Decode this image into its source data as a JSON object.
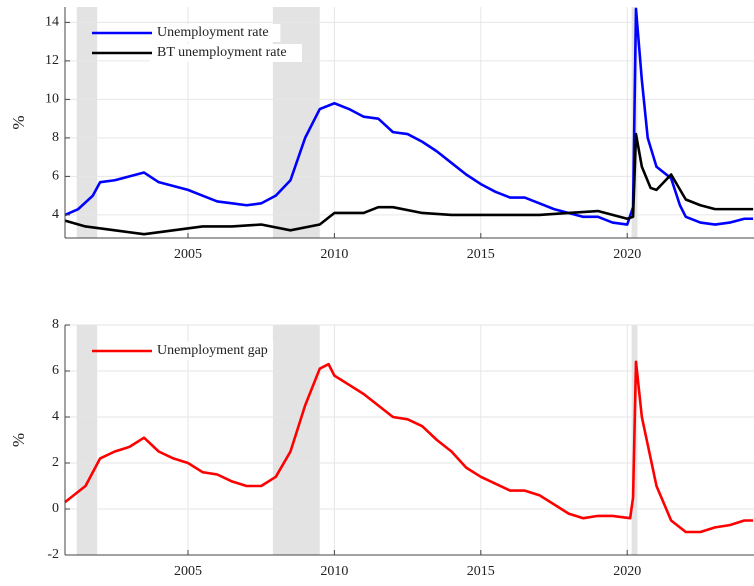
{
  "chart_data": [
    {
      "type": "line",
      "y_label": "%",
      "xlim": [
        2000.8,
        2024.33
      ],
      "ylim": [
        2.8,
        14.8
      ],
      "xticks": [
        2005,
        2010,
        2015,
        2020
      ],
      "yticks": [
        4,
        6,
        8,
        10,
        12,
        14
      ],
      "grid": true,
      "legend": "upper left",
      "recessions": [
        [
          2001.2,
          2001.9
        ],
        [
          2007.9,
          2009.5
        ],
        [
          2020.15,
          2020.35
        ]
      ],
      "series": [
        {
          "name": "Unemployment rate",
          "color": "#0000ff",
          "x": [
            2000.8,
            2001.25,
            2001.75,
            2002,
            2002.5,
            2003,
            2003.5,
            2004,
            2004.5,
            2005,
            2005.5,
            2006,
            2006.5,
            2007,
            2007.5,
            2008,
            2008.5,
            2009,
            2009.5,
            2010,
            2010.5,
            2011,
            2011.5,
            2012,
            2012.5,
            2013,
            2013.5,
            2014,
            2014.5,
            2015,
            2015.5,
            2016,
            2016.5,
            2017,
            2017.5,
            2018,
            2018.5,
            2019,
            2019.5,
            2020,
            2020.2,
            2020.3,
            2020.5,
            2020.7,
            2021,
            2021.5,
            2021.8,
            2022,
            2022.5,
            2023,
            2023.5,
            2024,
            2024.3
          ],
          "values": [
            4.0,
            4.3,
            5.0,
            5.7,
            5.8,
            6.0,
            6.2,
            5.7,
            5.5,
            5.3,
            5.0,
            4.7,
            4.6,
            4.5,
            4.6,
            5.0,
            5.8,
            8.0,
            9.5,
            9.8,
            9.5,
            9.1,
            9.0,
            8.3,
            8.2,
            7.8,
            7.3,
            6.7,
            6.1,
            5.6,
            5.2,
            4.9,
            4.9,
            4.6,
            4.3,
            4.1,
            3.9,
            3.9,
            3.6,
            3.5,
            4.4,
            14.7,
            11.0,
            8.0,
            6.5,
            5.9,
            4.5,
            3.9,
            3.6,
            3.5,
            3.6,
            3.8,
            3.8
          ]
        },
        {
          "name": "BT unemployment rate",
          "color": "#000000",
          "x": [
            2000.8,
            2001.5,
            2002.5,
            2003.5,
            2004.5,
            2005.5,
            2006.5,
            2007.5,
            2008.5,
            2009.5,
            2010,
            2011,
            2011.5,
            2012,
            2013,
            2014,
            2015,
            2016,
            2017,
            2018,
            2019,
            2020,
            2020.2,
            2020.3,
            2020.5,
            2020.8,
            2021,
            2021.5,
            2022,
            2022.5,
            2023,
            2024,
            2024.3
          ],
          "values": [
            3.7,
            3.4,
            3.2,
            3.0,
            3.2,
            3.4,
            3.4,
            3.5,
            3.2,
            3.5,
            4.1,
            4.1,
            4.4,
            4.4,
            4.1,
            4.0,
            4.0,
            4.0,
            4.0,
            4.1,
            4.2,
            3.8,
            3.9,
            8.2,
            6.5,
            5.4,
            5.3,
            6.1,
            4.8,
            4.5,
            4.3,
            4.3,
            4.3
          ]
        }
      ]
    },
    {
      "type": "line",
      "y_label": "%",
      "xlim": [
        2000.8,
        2024.33
      ],
      "ylim": [
        -2,
        8
      ],
      "xticks": [
        2005,
        2010,
        2015,
        2020
      ],
      "yticks": [
        -2,
        0,
        2,
        4,
        6,
        8
      ],
      "grid": true,
      "legend": "upper left",
      "recessions": [
        [
          2001.2,
          2001.9
        ],
        [
          2007.9,
          2009.5
        ],
        [
          2020.15,
          2020.35
        ]
      ],
      "series": [
        {
          "name": "Unemployment gap",
          "color": "#ff0000",
          "x": [
            2000.8,
            2001.5,
            2002,
            2002.5,
            2003,
            2003.5,
            2004,
            2004.5,
            2005,
            2005.5,
            2006,
            2006.5,
            2007,
            2007.5,
            2008,
            2008.5,
            2009,
            2009.5,
            2009.8,
            2010,
            2010.5,
            2011,
            2011.5,
            2012,
            2012.5,
            2013,
            2013.5,
            2014,
            2014.5,
            2015,
            2015.5,
            2016,
            2016.5,
            2017,
            2017.5,
            2018,
            2018.5,
            2019,
            2019.5,
            2020.1,
            2020.2,
            2020.3,
            2020.5,
            2020.8,
            2021,
            2021.5,
            2022,
            2022.5,
            2023,
            2023.5,
            2024,
            2024.3
          ],
          "values": [
            0.3,
            1.0,
            2.2,
            2.5,
            2.7,
            3.1,
            2.5,
            2.2,
            2.0,
            1.6,
            1.5,
            1.2,
            1.0,
            1.0,
            1.4,
            2.5,
            4.5,
            6.1,
            6.3,
            5.8,
            5.4,
            5.0,
            4.5,
            4.0,
            3.9,
            3.6,
            3.0,
            2.5,
            1.8,
            1.4,
            1.1,
            0.8,
            0.8,
            0.6,
            0.2,
            -0.2,
            -0.4,
            -0.3,
            -0.3,
            -0.4,
            0.5,
            6.4,
            4.0,
            2.2,
            1.0,
            -0.5,
            -1.0,
            -1.0,
            -0.8,
            -0.7,
            -0.5,
            -0.5
          ]
        }
      ]
    }
  ]
}
